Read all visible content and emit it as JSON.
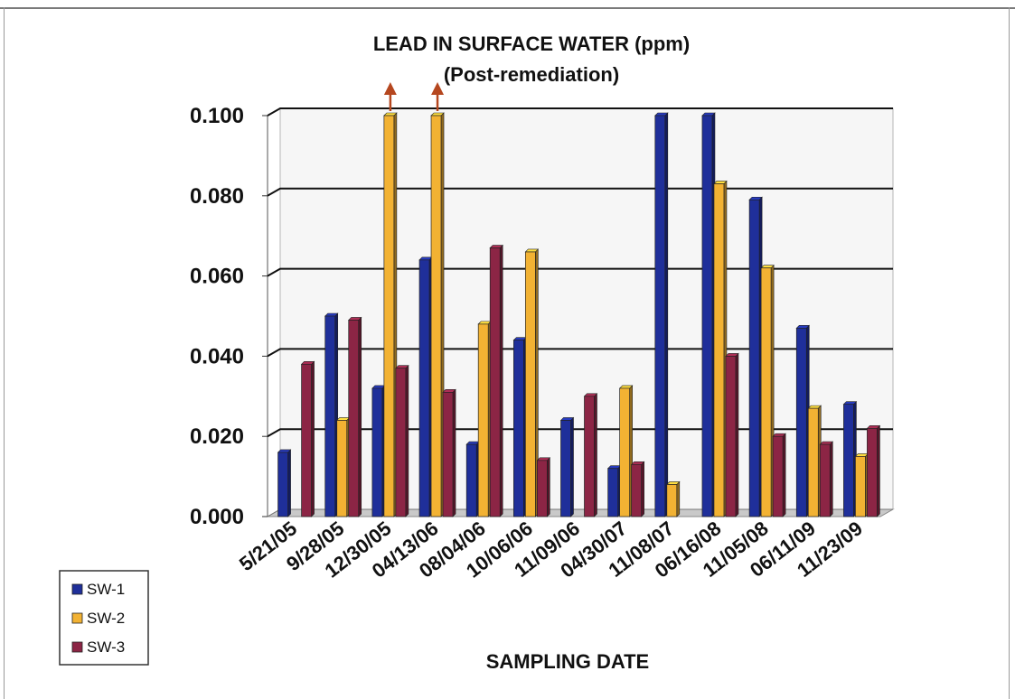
{
  "chart_data": {
    "type": "bar",
    "title": "LEAD IN SURFACE WATER (ppm)",
    "subtitle": "(Post-remediation)",
    "xlabel": "SAMPLING DATE",
    "ylabel": "",
    "ylim": [
      0,
      0.1
    ],
    "yticks": [
      "0.000",
      "0.020",
      "0.040",
      "0.060",
      "0.080",
      "0.100"
    ],
    "grid": true,
    "legend_position": "bottom-left",
    "categories": [
      "5/21/05",
      "9/28/05",
      "12/30/05",
      "04/13/06",
      "08/04/06",
      "10/06/06",
      "11/09/06",
      "04/30/07",
      "11/08/07",
      "06/16/08",
      "11/05/08",
      "06/11/09",
      "11/23/09"
    ],
    "series": [
      {
        "name": "SW-1",
        "color": "#1f2f9a",
        "values": [
          0.016,
          0.05,
          0.032,
          0.064,
          0.018,
          0.044,
          0.024,
          0.012,
          0.1,
          0.1,
          0.079,
          0.047,
          0.028
        ]
      },
      {
        "name": "SW-2",
        "color": "#f2b233",
        "values": [
          null,
          0.024,
          0.1,
          0.1,
          0.048,
          0.066,
          null,
          0.032,
          0.008,
          0.083,
          0.062,
          0.027,
          0.015
        ]
      },
      {
        "name": "SW-3",
        "color": "#8c2545",
        "values": [
          0.038,
          0.049,
          0.037,
          0.031,
          0.067,
          0.014,
          0.03,
          0.013,
          null,
          0.04,
          0.02,
          0.018,
          0.022
        ]
      }
    ],
    "off_scale_indicators": [
      {
        "category": "12/30/05",
        "series": "SW-2",
        "marker": "up-arrow-icon",
        "color": "#b5471f"
      },
      {
        "category": "04/13/06",
        "series": "SW-2",
        "marker": "up-arrow-icon",
        "color": "#b5471f"
      }
    ]
  }
}
